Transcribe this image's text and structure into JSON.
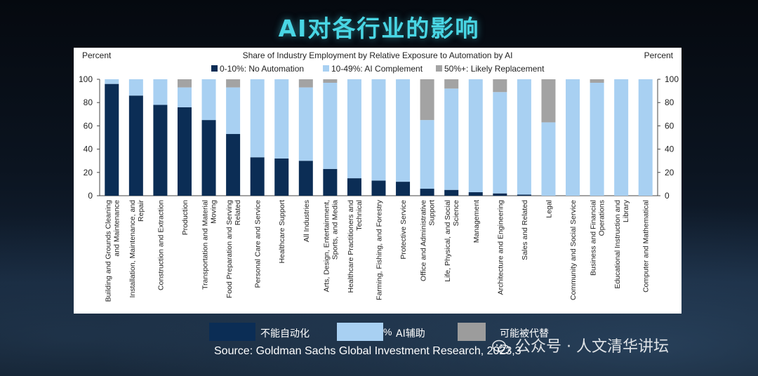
{
  "slide": {
    "title": "AI对各行业的影响",
    "legend_cn": [
      "不能自动化",
      "AI辅助",
      "可能被代替"
    ],
    "legend_fragment": "%",
    "source": "Source: Goldman Sachs Global Investment Research,   2023,3",
    "watermark": "公众号 · 人文清华讲坛"
  },
  "colors": {
    "no_automation": "#0b2d55",
    "complement": "#a8d0f2",
    "replacement": "#a3a3a3",
    "title": "#49d6e4"
  },
  "chart_data": {
    "type": "bar",
    "stacked": true,
    "title": "Share of Industry Employment by Relative  Exposure to Automation by AI",
    "left_axis_label": "Percent",
    "right_axis_label": "Percent",
    "ylim": [
      0,
      100
    ],
    "yticks": [
      0,
      20,
      40,
      60,
      80,
      100
    ],
    "legend_position": "top",
    "grid": false,
    "categories": [
      "Building and Grounds Cleaning and Maintenance",
      "Installation, Maintenance, and Repair",
      "Construction and Extraction",
      "Production",
      "Transportation and Material Moving",
      "Food Preparation and Serving Related",
      "Personal Care and Service",
      "Healthcare Support",
      "All Industries",
      "Arts, Design, Entertainment, Sports, and Media",
      "Healthcare Practitioners and Technical",
      "Farming, Fishing, and Forestry",
      "Protective Service",
      "Office and Administrative Support",
      "Life, Physical, and Social Science",
      "Management",
      "Architecture and Engineering",
      "Sales and Related",
      "Legal",
      "Community and Social Service",
      "Business and Financial Operations",
      "Educational Instruction and Library",
      "Computer and Mathematical"
    ],
    "series": [
      {
        "name": "0-10%: No Automation",
        "values": [
          96,
          86,
          78,
          76,
          65,
          53,
          33,
          32,
          30,
          23,
          15,
          13,
          12,
          6,
          5,
          3,
          2,
          1,
          0,
          0,
          0,
          0,
          0
        ]
      },
      {
        "name": "10-49%: AI Complement",
        "values": [
          4,
          14,
          22,
          17,
          35,
          40,
          67,
          68,
          63,
          74,
          85,
          87,
          88,
          59,
          87,
          97,
          87,
          99,
          63,
          100,
          97,
          100,
          100
        ]
      },
      {
        "name": "50%+: Likely Replacement",
        "values": [
          0,
          0,
          0,
          7,
          0,
          7,
          0,
          0,
          7,
          3,
          0,
          0,
          0,
          35,
          8,
          0,
          11,
          0,
          37,
          0,
          3,
          0,
          0
        ]
      }
    ]
  }
}
